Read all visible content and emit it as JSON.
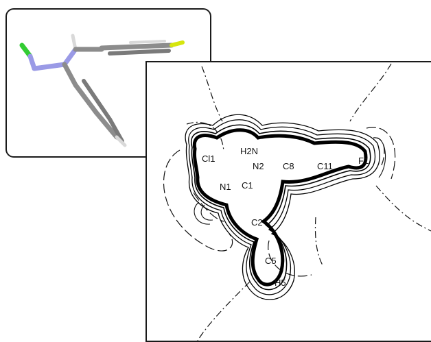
{
  "molecule_view": {
    "atom_colors": {
      "chlorine": "#33cc33",
      "nitrogen": "#9a9ae6",
      "fluorine": "#d6e60f",
      "carbon": "#8c8c8c",
      "hydrogen": "#d9d9d9"
    }
  },
  "density_map": {
    "atom_labels": [
      {
        "key": "cl1",
        "text": "Cl1"
      },
      {
        "key": "h2n",
        "text": "H2N"
      },
      {
        "key": "n2",
        "text": "N2"
      },
      {
        "key": "c8",
        "text": "C8"
      },
      {
        "key": "c11",
        "text": "C11"
      },
      {
        "key": "f1",
        "text": "F1"
      },
      {
        "key": "n1",
        "text": "N1"
      },
      {
        "key": "c1",
        "text": "C1"
      },
      {
        "key": "c2",
        "text": "C2"
      },
      {
        "key": "c5",
        "text": "C5"
      },
      {
        "key": "h5",
        "text": "H5"
      }
    ]
  }
}
